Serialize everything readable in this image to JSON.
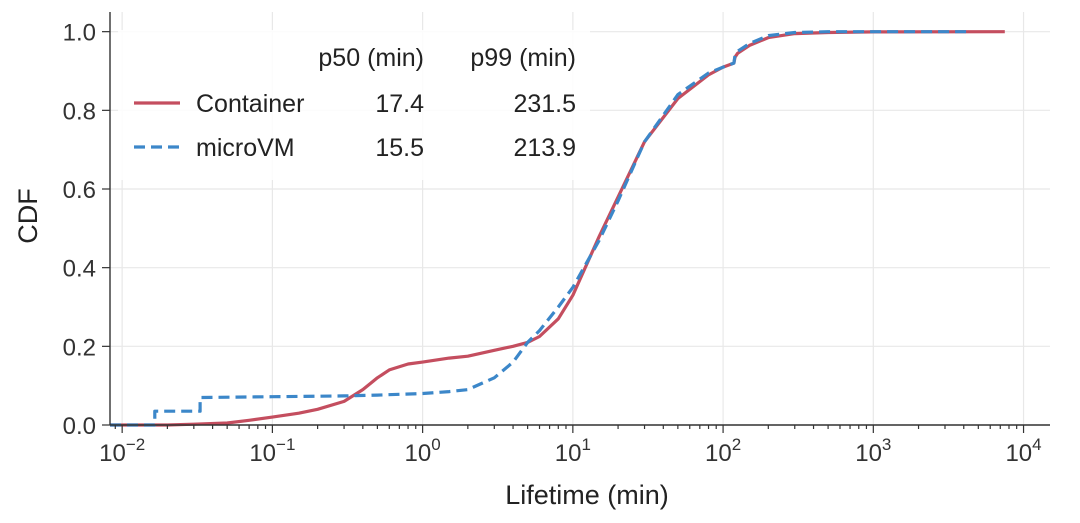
{
  "chart_data": {
    "type": "line",
    "xlabel": "Lifetime (min)",
    "ylabel": "CDF",
    "xscale": "log",
    "xlim": [
      0.0083,
      15000
    ],
    "ylim": [
      0,
      1.05
    ],
    "grid": true,
    "x_ticks": [
      {
        "value": 0.01,
        "base": "10",
        "exp": "−2"
      },
      {
        "value": 0.1,
        "base": "10",
        "exp": "−1"
      },
      {
        "value": 1,
        "base": "10",
        "exp": "0"
      },
      {
        "value": 10,
        "base": "10",
        "exp": "1"
      },
      {
        "value": 100,
        "base": "10",
        "exp": "2"
      },
      {
        "value": 1000,
        "base": "10",
        "exp": "3"
      },
      {
        "value": 10000,
        "base": "10",
        "exp": "4"
      }
    ],
    "y_ticks": [
      "0.0",
      "0.2",
      "0.4",
      "0.6",
      "0.8",
      "1.0"
    ],
    "legend": {
      "placement": "top-left",
      "headers": [
        "p50 (min)",
        "p99 (min)"
      ],
      "entries": [
        {
          "series": "Container",
          "p50": "17.4",
          "p99": "231.5"
        },
        {
          "series": "microVM",
          "p50": "15.5",
          "p99": "213.9"
        }
      ]
    },
    "series": [
      {
        "name": "Container",
        "color": "#c44e5f",
        "style": "solid",
        "points": [
          [
            0.0083,
            0.0
          ],
          [
            0.02,
            0.0
          ],
          [
            0.03,
            0.002
          ],
          [
            0.05,
            0.005
          ],
          [
            0.07,
            0.012
          ],
          [
            0.1,
            0.02
          ],
          [
            0.15,
            0.03
          ],
          [
            0.2,
            0.04
          ],
          [
            0.3,
            0.06
          ],
          [
            0.4,
            0.09
          ],
          [
            0.5,
            0.12
          ],
          [
            0.6,
            0.14
          ],
          [
            0.8,
            0.155
          ],
          [
            1,
            0.16
          ],
          [
            1.5,
            0.17
          ],
          [
            2,
            0.175
          ],
          [
            3,
            0.19
          ],
          [
            4,
            0.2
          ],
          [
            5,
            0.21
          ],
          [
            6,
            0.225
          ],
          [
            8,
            0.27
          ],
          [
            10,
            0.33
          ],
          [
            15,
            0.48
          ],
          [
            20,
            0.58
          ],
          [
            30,
            0.72
          ],
          [
            50,
            0.83
          ],
          [
            80,
            0.89
          ],
          [
            100,
            0.91
          ],
          [
            118,
            0.92
          ],
          [
            120,
            0.935
          ],
          [
            125,
            0.945
          ],
          [
            150,
            0.965
          ],
          [
            200,
            0.985
          ],
          [
            300,
            0.995
          ],
          [
            500,
            0.998
          ],
          [
            1000,
            0.9995
          ],
          [
            7500,
            1.0
          ]
        ]
      },
      {
        "name": "microVM",
        "color": "#3c87c9",
        "style": "dashed",
        "points": [
          [
            0.0083,
            0.0
          ],
          [
            0.0165,
            0.0
          ],
          [
            0.0165,
            0.035
          ],
          [
            0.033,
            0.035
          ],
          [
            0.033,
            0.07
          ],
          [
            0.1,
            0.072
          ],
          [
            0.3,
            0.074
          ],
          [
            0.5,
            0.076
          ],
          [
            1,
            0.08
          ],
          [
            1.5,
            0.085
          ],
          [
            2,
            0.09
          ],
          [
            3,
            0.12
          ],
          [
            4,
            0.16
          ],
          [
            5,
            0.21
          ],
          [
            6,
            0.24
          ],
          [
            8,
            0.3
          ],
          [
            10,
            0.35
          ],
          [
            15,
            0.47
          ],
          [
            20,
            0.57
          ],
          [
            30,
            0.72
          ],
          [
            50,
            0.84
          ],
          [
            80,
            0.895
          ],
          [
            100,
            0.91
          ],
          [
            118,
            0.92
          ],
          [
            120,
            0.94
          ],
          [
            125,
            0.95
          ],
          [
            150,
            0.97
          ],
          [
            200,
            0.99
          ],
          [
            300,
            0.998
          ],
          [
            500,
            1.0
          ],
          [
            4500,
            1.0
          ]
        ]
      }
    ]
  }
}
